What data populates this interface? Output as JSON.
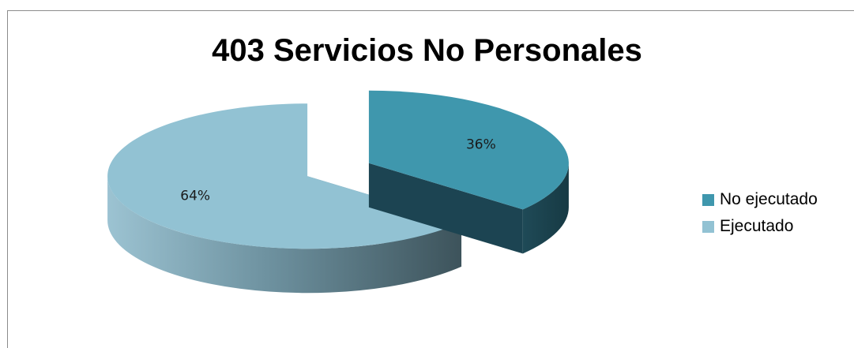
{
  "chart_data": {
    "type": "pie",
    "title": "403 Servicios No Personales",
    "categories": [
      "No ejecutado",
      "Ejecutado"
    ],
    "values": [
      36,
      64
    ],
    "data_labels": [
      "36%",
      "64%"
    ],
    "colors": {
      "No ejecutado": "#3f97ad",
      "Ejecutado": "#92c2d3"
    },
    "legend_position": "right",
    "exploded": true,
    "style": "3d"
  },
  "legend": {
    "items": [
      {
        "label": "No ejecutado",
        "color": "#3f97ad"
      },
      {
        "label": "Ejecutado",
        "color": "#92c2d3"
      }
    ]
  }
}
